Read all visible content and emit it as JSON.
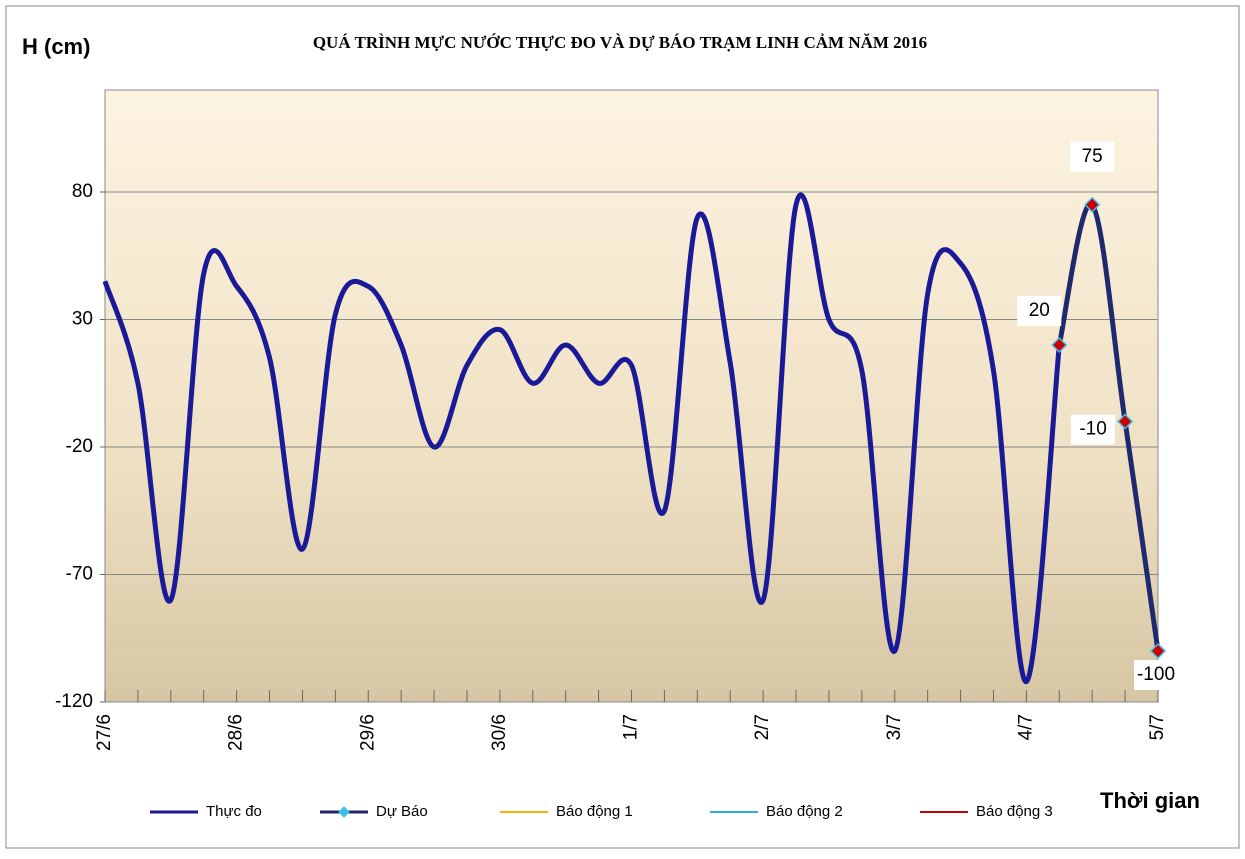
{
  "chart_data": {
    "type": "line",
    "title": "QUÁ TRÌNH  MỰC NƯỚC THỰC ĐO VÀ DỰ BÁO TRẠM LINH CẢM NĂM 2016",
    "y_label": "H (cm)",
    "x_label": "Thời gian",
    "categories": [
      "27/6",
      null,
      null,
      null,
      "28/6",
      null,
      null,
      null,
      "29/6",
      null,
      null,
      null,
      "30/6",
      null,
      null,
      null,
      "1/7",
      null,
      null,
      null,
      "2/7",
      null,
      null,
      null,
      "3/7",
      null,
      null,
      null,
      "4/7",
      null,
      null,
      null,
      "5/7"
    ],
    "series": [
      {
        "name": "Thực đo",
        "color": "#1a1a99",
        "values": [
          45,
          5,
          -80,
          48,
          43,
          15,
          -60,
          32,
          43,
          20,
          -20,
          12,
          26,
          5,
          20,
          5,
          12,
          -45,
          70,
          13,
          -80,
          75,
          30,
          10,
          -100,
          40,
          52,
          10,
          -112,
          20,
          null,
          null,
          null
        ]
      },
      {
        "name": "Dự Báo",
        "color": "#1f2a6e",
        "marker_color": "#cc0000",
        "marker_edge": "#3cc0e8",
        "values": [
          null,
          null,
          null,
          null,
          null,
          null,
          null,
          null,
          null,
          null,
          null,
          null,
          null,
          null,
          null,
          null,
          null,
          null,
          null,
          null,
          null,
          null,
          null,
          null,
          null,
          null,
          null,
          null,
          null,
          20,
          75,
          -10,
          -100
        ],
        "show_value_labels": true
      },
      {
        "name": "Báo động  1",
        "color": "#ffb000"
      },
      {
        "name": "Báo động  2",
        "color": "#33aadd"
      },
      {
        "name": "Báo động  3",
        "color": "#cc0000"
      }
    ],
    "ylim": [
      -120,
      120
    ],
    "yticks": [
      -120,
      -70,
      -20,
      30,
      80
    ],
    "grid": true
  }
}
